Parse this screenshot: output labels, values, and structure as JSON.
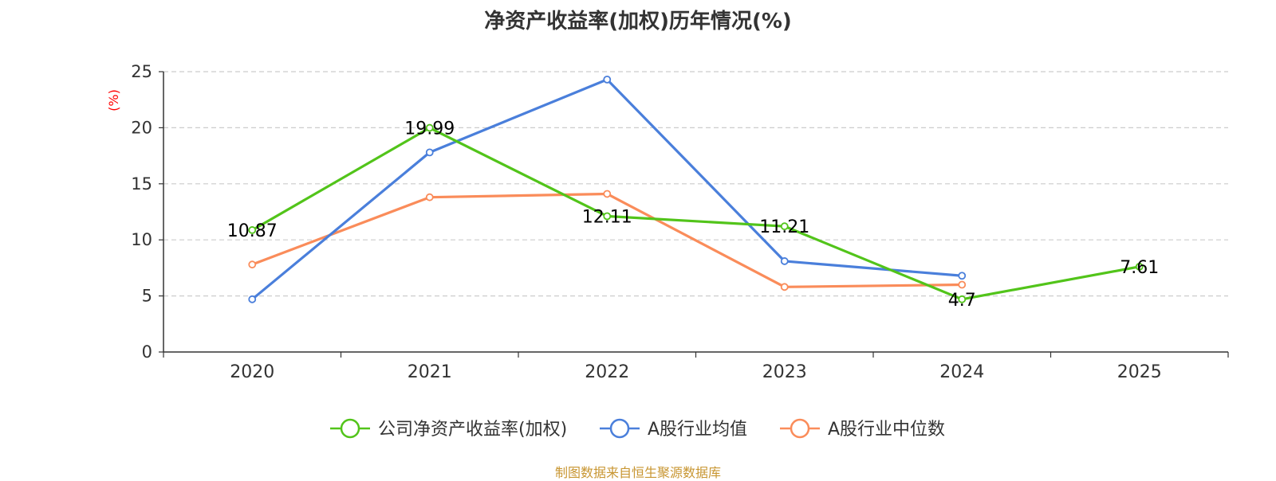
{
  "chart_data": {
    "type": "line",
    "title": "净资产收益率(加权)历年情况(%)",
    "ylabel": "(%)",
    "xlabel": "",
    "categories": [
      "2020",
      "2021",
      "2022",
      "2023",
      "2024",
      "2025"
    ],
    "ylim": [
      0,
      25
    ],
    "yticks": [
      0,
      5,
      10,
      15,
      20,
      25
    ],
    "grid": true,
    "legend_position": "bottom",
    "series": [
      {
        "name": "公司净资产收益率(加权)",
        "color": "#52c41a",
        "values": [
          10.87,
          19.99,
          12.11,
          11.21,
          4.7,
          7.61
        ],
        "labels": [
          "10.87",
          "19.99",
          "12.11",
          "11.21",
          "4.7",
          "7.61"
        ]
      },
      {
        "name": "A股行业均值",
        "color": "#4a7fdb",
        "values": [
          4.7,
          17.8,
          24.3,
          8.1,
          6.8,
          null
        ]
      },
      {
        "name": "A股行业中位数",
        "color": "#fa8c5a",
        "values": [
          7.8,
          13.8,
          14.1,
          5.8,
          6.0,
          null
        ]
      }
    ]
  },
  "source_note": "制图数据来自恒生聚源数据库",
  "colors": {
    "axis": "#333333",
    "grid": "#cccccc",
    "ylabel": "#ff0000",
    "source": "#c89632"
  }
}
